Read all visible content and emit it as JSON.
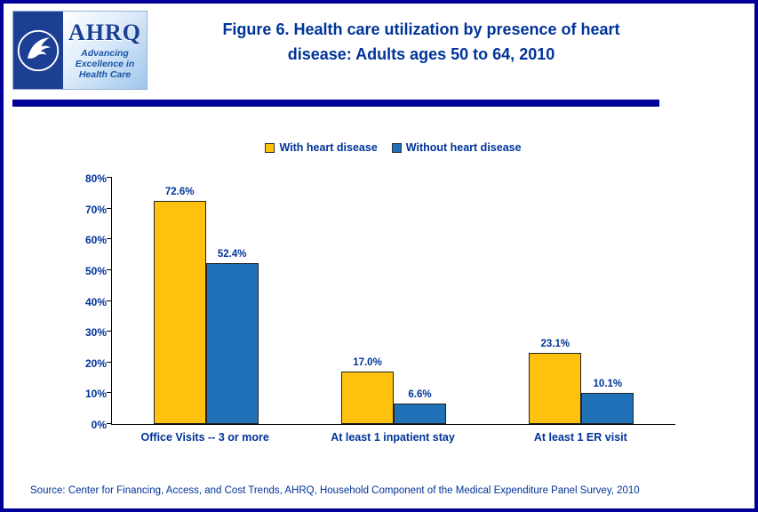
{
  "header": {
    "title_line1": "Figure 6. Health care utilization by presence of heart",
    "title_line2": "disease: Adults ages 50 to 64, 2010"
  },
  "logo": {
    "acronym": "AHRQ",
    "tagline": [
      "Advancing",
      "Excellence in",
      "Health Care"
    ]
  },
  "chart_data": {
    "type": "bar",
    "title": "Figure 6. Health care utilization by presence of heart disease: Adults ages 50 to 64, 2010",
    "categories": [
      "Office Visits -- 3 or more",
      "At least 1 inpatient stay",
      "At least 1 ER visit"
    ],
    "series": [
      {
        "name": "With heart disease",
        "color": "#FFC20E",
        "values": [
          72.6,
          17.0,
          23.1
        ],
        "labels": [
          "72.6%",
          "17.0%",
          "23.1%"
        ]
      },
      {
        "name": "Without heart disease",
        "color": "#1F72B8",
        "values": [
          52.4,
          6.6,
          10.1
        ],
        "labels": [
          "52.4%",
          "6.6%",
          "10.1%"
        ]
      }
    ],
    "xlabel": "",
    "ylabel": "",
    "ylim": [
      0,
      80
    ],
    "ytick_step": 10,
    "ytick_labels": [
      "0%",
      "10%",
      "20%",
      "30%",
      "40%",
      "50%",
      "60%",
      "70%",
      "80%"
    ],
    "legend_position": "top",
    "grid": false
  },
  "footer": {
    "source": "Source: Center for Financing, Access, and Cost Trends, AHRQ, Household Component of the Medical Expenditure Panel Survey, 2010"
  },
  "colors": {
    "navy_text": "#003399",
    "border_navy": "#000099",
    "bar_yellow": "#FFC20E",
    "bar_blue": "#1F72B8"
  }
}
